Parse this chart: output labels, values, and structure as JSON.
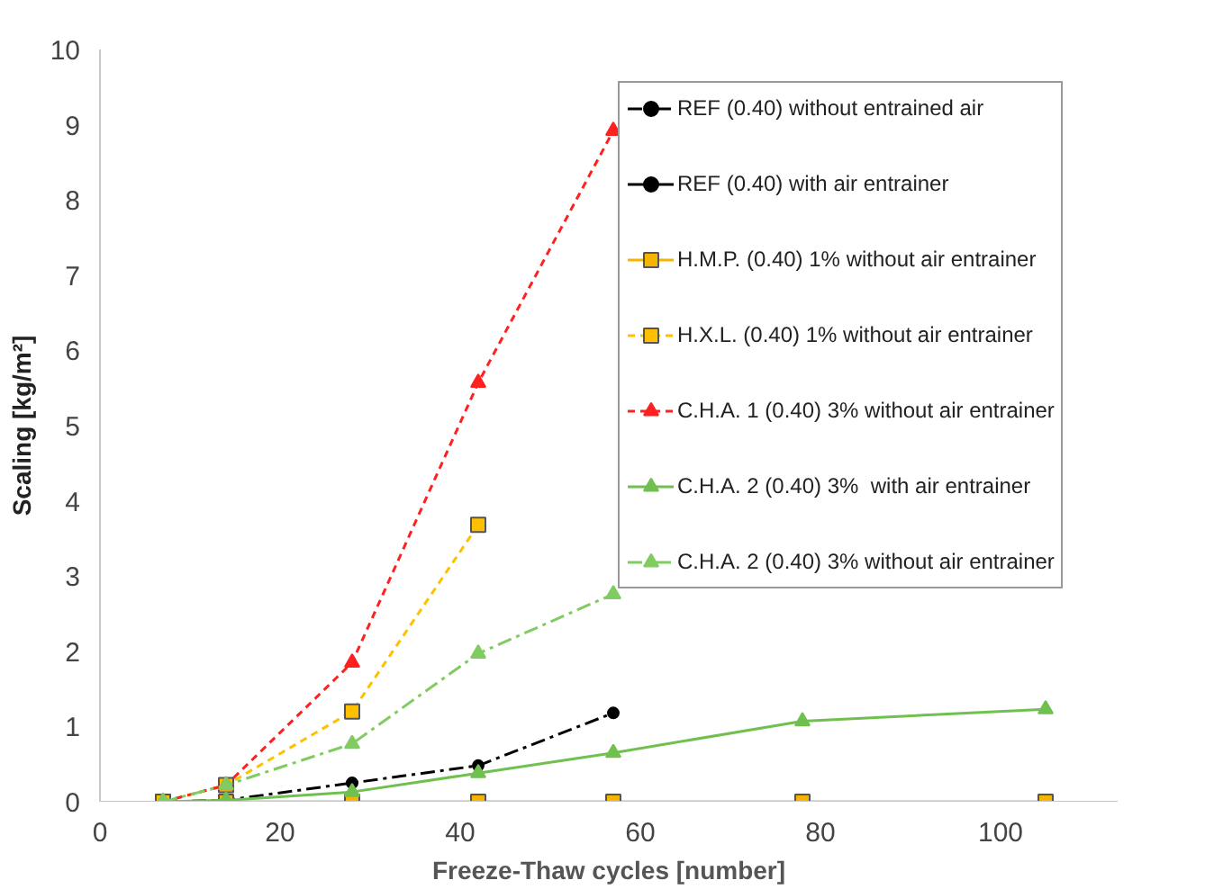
{
  "chart_data": {
    "type": "line",
    "xlabel": "Freeze-Thaw cycles [number]",
    "ylabel": "Scaling [kg/m²]",
    "xlim": [
      0,
      113
    ],
    "xticks": [
      0,
      20,
      40,
      60,
      80,
      100
    ],
    "ylim": [
      0,
      10
    ],
    "yticks": [
      0,
      1,
      2,
      3,
      4,
      5,
      6,
      7,
      8,
      9,
      10
    ],
    "grid": false,
    "legend": "top right",
    "series": [
      {
        "name": "REF (0.40) without entrained air",
        "color": "#000000",
        "marker": "circle",
        "line_style": "dashdot",
        "x": [
          7,
          14,
          28,
          42,
          57
        ],
        "values": [
          0,
          0.02,
          0.25,
          0.48,
          1.18
        ]
      },
      {
        "name": "REF (0.40) with air entrainer",
        "color": "#000000",
        "marker": "circle",
        "line_style": "solid"
      },
      {
        "name": "H.M.P. (0.40) 1% without air entrainer",
        "color": "#f5b400",
        "marker": "square",
        "line_style": "solid",
        "x": [
          7,
          14,
          28,
          42,
          57,
          78,
          105
        ],
        "values": [
          0,
          0,
          0,
          0,
          0,
          0,
          0
        ]
      },
      {
        "name": "H.X.L. (0.40) 1% without air entrainer",
        "color": "#ffc000",
        "marker": "square",
        "line_style": "dashed",
        "x": [
          7,
          14,
          28,
          42
        ],
        "values": [
          0,
          0.22,
          1.2,
          3.68
        ]
      },
      {
        "name": "C.H.A. 1 (0.40) 3% without air entrainer",
        "color": "#ff2020",
        "marker": "triangle",
        "line_style": "dashed",
        "x": [
          7,
          14,
          28,
          42,
          57
        ],
        "values": [
          0,
          0.22,
          1.85,
          5.57,
          8.92
        ]
      },
      {
        "name": "C.H.A. 2 (0.40) 3%  with air entrainer",
        "color": "#70c050",
        "marker": "triangle",
        "line_style": "solid",
        "x": [
          7,
          14,
          28,
          42,
          57,
          78,
          105
        ],
        "values": [
          0,
          0.02,
          0.13,
          0.38,
          0.65,
          1.07,
          1.23
        ]
      },
      {
        "name": "C.H.A. 2 (0.40) 3% without air entrainer",
        "color": "#80cc60",
        "marker": "triangle",
        "line_style": "dashdot",
        "x": [
          7,
          14,
          28,
          42,
          57
        ],
        "values": [
          0,
          0.22,
          0.77,
          1.97,
          2.76
        ]
      }
    ]
  }
}
